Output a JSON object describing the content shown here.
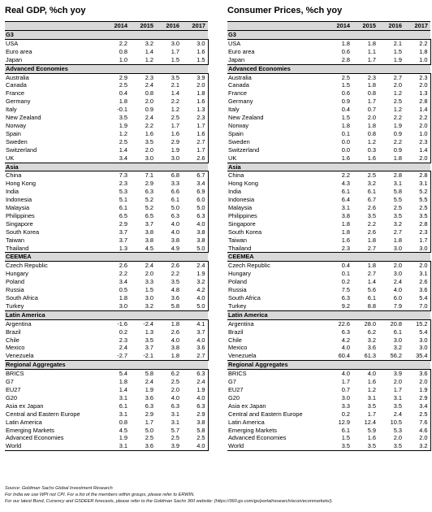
{
  "years": [
    "2014",
    "2015",
    "2016",
    "2017"
  ],
  "left": {
    "title": "Real GDP, %ch yoy",
    "sections": [
      {
        "name": "G3",
        "rows": [
          [
            "USA",
            "2.2",
            "3.2",
            "3.0",
            "3.0"
          ],
          [
            "Euro area",
            "0.8",
            "1.4",
            "1.7",
            "1.6"
          ],
          [
            "Japan",
            "1.0",
            "1.2",
            "1.5",
            "1.5"
          ]
        ]
      },
      {
        "name": "Advanced Economies",
        "rows": [
          [
            "Australia",
            "2.9",
            "2.3",
            "3.5",
            "3.9"
          ],
          [
            "Canada",
            "2.5",
            "2.4",
            "2.1",
            "2.0"
          ],
          [
            "France",
            "0.4",
            "0.8",
            "1.4",
            "1.8"
          ],
          [
            "Germany",
            "1.8",
            "2.0",
            "2.2",
            "1.6"
          ],
          [
            "Italy",
            "-0.1",
            "0.9",
            "1.2",
            "1.3"
          ],
          [
            "New Zealand",
            "3.5",
            "2.4",
            "2.5",
            "2.3"
          ],
          [
            "Norway",
            "1.9",
            "2.2",
            "1.7",
            "1.7"
          ],
          [
            "Spain",
            "1.2",
            "1.6",
            "1.6",
            "1.6"
          ],
          [
            "Sweden",
            "2.5",
            "3.5",
            "2.9",
            "2.7"
          ],
          [
            "Switzerland",
            "1.4",
            "2.0",
            "1.9",
            "1.7"
          ],
          [
            "UK",
            "3.4",
            "3.0",
            "3.0",
            "2.6"
          ]
        ]
      },
      {
        "name": "Asia",
        "rows": [
          [
            "China",
            "7.3",
            "7.1",
            "6.8",
            "6.7"
          ],
          [
            "Hong Kong",
            "2.3",
            "2.9",
            "3.3",
            "3.4"
          ],
          [
            "India",
            "5.3",
            "6.3",
            "6.6",
            "6.9"
          ],
          [
            "Indonesia",
            "5.1",
            "5.2",
            "6.1",
            "6.0"
          ],
          [
            "Malaysia",
            "6.1",
            "5.2",
            "5.0",
            "5.0"
          ],
          [
            "Philippines",
            "6.5",
            "6.5",
            "6.3",
            "6.3"
          ],
          [
            "Singapore",
            "2.9",
            "3.7",
            "4.0",
            "4.0"
          ],
          [
            "South Korea",
            "3.7",
            "3.8",
            "4.0",
            "3.8"
          ],
          [
            "Taiwan",
            "3.7",
            "3.8",
            "3.8",
            "3.8"
          ],
          [
            "Thailand",
            "1.3",
            "4.5",
            "4.9",
            "5.0"
          ]
        ]
      },
      {
        "name": "CEEMEA",
        "rows": [
          [
            "Czech Republic",
            "2.6",
            "2.4",
            "2.6",
            "2.4"
          ],
          [
            "Hungary",
            "2.2",
            "2.0",
            "2.2",
            "1.9"
          ],
          [
            "Poland",
            "3.4",
            "3.3",
            "3.5",
            "3.2"
          ],
          [
            "Russia",
            "0.5",
            "1.5",
            "4.8",
            "4.2"
          ],
          [
            "South Africa",
            "1.8",
            "3.0",
            "3.6",
            "4.0"
          ],
          [
            "Turkey",
            "3.0",
            "3.2",
            "5.8",
            "5.0"
          ]
        ]
      },
      {
        "name": "Latin America",
        "rows": [
          [
            "Argentina",
            "-1.6",
            "-2.4",
            "1.8",
            "4.1"
          ],
          [
            "Brazil",
            "0.2",
            "1.3",
            "2.6",
            "3.7"
          ],
          [
            "Chile",
            "2.3",
            "3.5",
            "4.0",
            "4.0"
          ],
          [
            "Mexico",
            "2.4",
            "3.7",
            "3.8",
            "3.6"
          ],
          [
            "Venezuela",
            "-2.7",
            "-2.1",
            "1.8",
            "2.7"
          ]
        ]
      },
      {
        "name": "Regional Aggregates",
        "rows": [
          [
            "BRICS",
            "5.4",
            "5.8",
            "6.2",
            "6.3"
          ],
          [
            "G7",
            "1.8",
            "2.4",
            "2.5",
            "2.4"
          ],
          [
            "EU27",
            "1.4",
            "1.9",
            "2.0",
            "1.9"
          ],
          [
            "G20",
            "3.1",
            "3.6",
            "4.0",
            "4.0"
          ],
          [
            "Asia ex Japan",
            "6.1",
            "6.3",
            "6.3",
            "6.3"
          ],
          [
            "Central and Eastern Europe",
            "3.1",
            "2.9",
            "3.1",
            "2.9"
          ],
          [
            "Latin America",
            "0.8",
            "1.7",
            "3.1",
            "3.8"
          ],
          [
            "Emerging Markets",
            "4.5",
            "5.0",
            "5.7",
            "5.8"
          ],
          [
            "Advanced Economies",
            "1.9",
            "2.5",
            "2.5",
            "2.5"
          ],
          [
            "World",
            "3.1",
            "3.6",
            "3.9",
            "4.0"
          ]
        ]
      }
    ]
  },
  "right": {
    "title": "Consumer Prices, %ch yoy",
    "sections": [
      {
        "name": "G3",
        "rows": [
          [
            "USA",
            "1.8",
            "1.8",
            "2.1",
            "2.2"
          ],
          [
            "Euro area",
            "0.6",
            "1.1",
            "1.5",
            "1.8"
          ],
          [
            "Japan",
            "2.8",
            "1.7",
            "1.9",
            "1.0"
          ]
        ]
      },
      {
        "name": "Advanced Economies",
        "rows": [
          [
            "Australia",
            "2.5",
            "2.3",
            "2.7",
            "2.3"
          ],
          [
            "Canada",
            "1.5",
            "1.8",
            "2.0",
            "2.0"
          ],
          [
            "France",
            "0.6",
            "0.8",
            "1.2",
            "1.3"
          ],
          [
            "Germany",
            "0.9",
            "1.7",
            "2.5",
            "2.8"
          ],
          [
            "Italy",
            "0.4",
            "0.7",
            "1.2",
            "1.4"
          ],
          [
            "New Zealand",
            "1.5",
            "2.0",
            "2.2",
            "2.2"
          ],
          [
            "Norway",
            "1.8",
            "1.8",
            "1.9",
            "2.0"
          ],
          [
            "Spain",
            "0.1",
            "0.8",
            "0.9",
            "1.0"
          ],
          [
            "Sweden",
            "0.0",
            "1.2",
            "2.2",
            "2.3"
          ],
          [
            "Switzerland",
            "0.0",
            "0.3",
            "0.9",
            "1.4"
          ],
          [
            "UK",
            "1.6",
            "1.6",
            "1.8",
            "2.0"
          ]
        ]
      },
      {
        "name": "Asia",
        "rows": [
          [
            "China",
            "2.2",
            "2.5",
            "2.8",
            "2.8"
          ],
          [
            "Hong Kong",
            "4.3",
            "3.2",
            "3.1",
            "3.1"
          ],
          [
            "India",
            "6.1",
            "6.1",
            "5.8",
            "5.2"
          ],
          [
            "Indonesia",
            "6.4",
            "6.7",
            "5.5",
            "5.5"
          ],
          [
            "Malaysia",
            "3.1",
            "2.6",
            "2.5",
            "2.5"
          ],
          [
            "Philippines",
            "3.8",
            "3.5",
            "3.5",
            "3.5"
          ],
          [
            "Singapore",
            "1.8",
            "2.2",
            "3.2",
            "2.8"
          ],
          [
            "South Korea",
            "1.8",
            "2.6",
            "2.7",
            "2.3"
          ],
          [
            "Taiwan",
            "1.6",
            "1.8",
            "1.8",
            "1.7"
          ],
          [
            "Thailand",
            "2.3",
            "2.7",
            "3.0",
            "3.0"
          ]
        ]
      },
      {
        "name": "CEEMEA",
        "rows": [
          [
            "Czech Republic",
            "0.4",
            "1.8",
            "2.0",
            "2.0"
          ],
          [
            "Hungary",
            "0.1",
            "2.7",
            "3.0",
            "3.1"
          ],
          [
            "Poland",
            "0.2",
            "1.4",
            "2.4",
            "2.6"
          ],
          [
            "Russia",
            "7.5",
            "5.6",
            "4.0",
            "3.6"
          ],
          [
            "South Africa",
            "6.3",
            "6.1",
            "6.0",
            "5.4"
          ],
          [
            "Turkey",
            "9.2",
            "8.8",
            "7.9",
            "7.0"
          ]
        ]
      },
      {
        "name": "Latin America",
        "rows": [
          [
            "Argentina",
            "22.6",
            "28.0",
            "20.8",
            "15.2"
          ],
          [
            "Brazil",
            "6.3",
            "6.2",
            "6.1",
            "5.4"
          ],
          [
            "Chile",
            "4.2",
            "3.2",
            "3.0",
            "3.0"
          ],
          [
            "Mexico",
            "4.0",
            "3.6",
            "3.2",
            "3.0"
          ],
          [
            "Venezuela",
            "60.4",
            "61.3",
            "56.2",
            "35.4"
          ]
        ]
      },
      {
        "name": "Regional Aggregates",
        "rows": [
          [
            "BRICS",
            "4.0",
            "4.0",
            "3.9",
            "3.6"
          ],
          [
            "G7",
            "1.7",
            "1.6",
            "2.0",
            "2.0"
          ],
          [
            "EU27",
            "0.7",
            "1.2",
            "1.7",
            "1.9"
          ],
          [
            "G20",
            "3.0",
            "3.1",
            "3.1",
            "2.9"
          ],
          [
            "Asia ex Japan",
            "3.3",
            "3.5",
            "3.5",
            "3.4"
          ],
          [
            "Central and Eastern Europe",
            "0.2",
            "1.7",
            "2.4",
            "2.5"
          ],
          [
            "Latin America",
            "12.9",
            "12.4",
            "10.5",
            "7.6"
          ],
          [
            "Emerging Markets",
            "6.1",
            "5.9",
            "5.3",
            "4.6"
          ],
          [
            "Advanced Economies",
            "1.5",
            "1.6",
            "2.0",
            "2.0"
          ],
          [
            "World",
            "3.5",
            "3.5",
            "3.5",
            "3.2"
          ]
        ]
      }
    ]
  },
  "footnotes": [
    "Source: Goldman Sachs Global Investment Research",
    "For India we use WPI not CPI. For a list of the members within groups, please refer to ERWIN.",
    "For our latest Bond, Currency and GSDEER forecasts, please refer to the Goldman Sachs 360 website: (https://360.gs.com/gs/portal/research/econ/econmarkets/)."
  ]
}
